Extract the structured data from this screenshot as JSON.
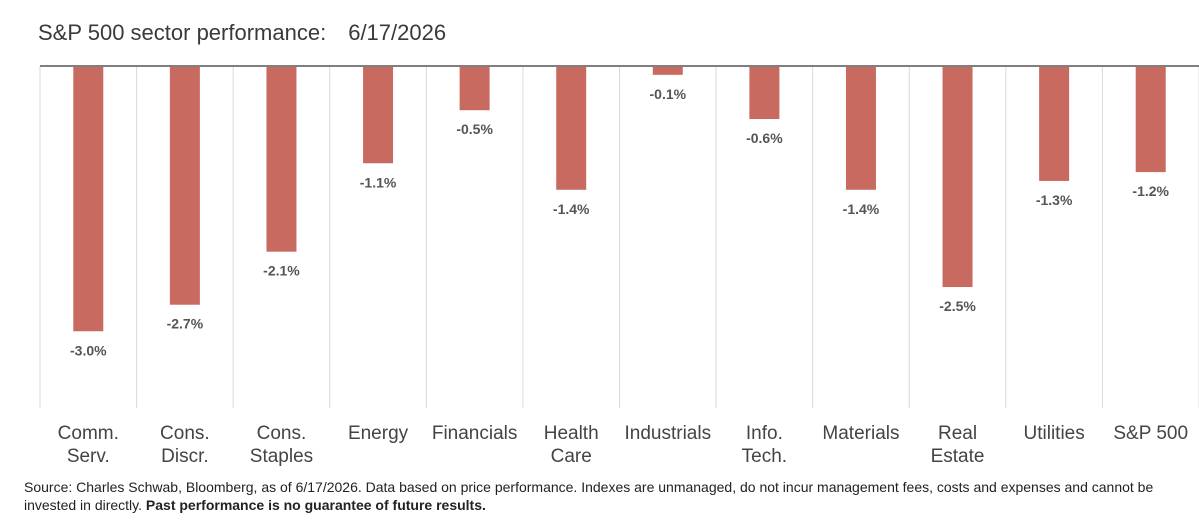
{
  "title": "S&P 500 sector performance:",
  "subtitle": "6/17/2026",
  "footer": {
    "source": "Source: Charles Schwab, Bloomberg, as of 6/17/2026.  Data based on price performance. Indexes are unmanaged, do not incur management fees, costs and expenses and cannot be invested in directly.",
    "disclaimer": "Past performance is no guarantee of future results."
  },
  "colors": {
    "bar": "#c96a60",
    "axis": "#7f7f7f",
    "grid": "#d9d9d9"
  },
  "chart_data": {
    "type": "bar",
    "title": "S&P 500 sector performance:",
    "subtitle": "6/17/2026",
    "categories": [
      [
        "Comm.",
        "Serv."
      ],
      [
        "Cons.",
        "Discr."
      ],
      [
        "Cons.",
        "Staples"
      ],
      [
        "Energy"
      ],
      [
        "Financials"
      ],
      [
        "Health",
        "Care"
      ],
      [
        "Industrials"
      ],
      [
        "Info.",
        "Tech."
      ],
      [
        "Materials"
      ],
      [
        "Real",
        "Estate"
      ],
      [
        "Utilities"
      ],
      [
        "S&P 500"
      ]
    ],
    "values": [
      -3.0,
      -2.7,
      -2.1,
      -1.1,
      -0.5,
      -1.4,
      -0.1,
      -0.6,
      -1.4,
      -2.5,
      -1.3,
      -1.2
    ],
    "value_labels": [
      "-3.0%",
      "-2.7%",
      "-2.1%",
      "-1.1%",
      "-0.5%",
      "-1.4%",
      "-0.1%",
      "-0.6%",
      "-1.4%",
      "-2.5%",
      "-1.3%",
      "-1.2%"
    ],
    "ylim": [
      -3.4,
      0
    ],
    "grid": true,
    "legend": "none"
  }
}
